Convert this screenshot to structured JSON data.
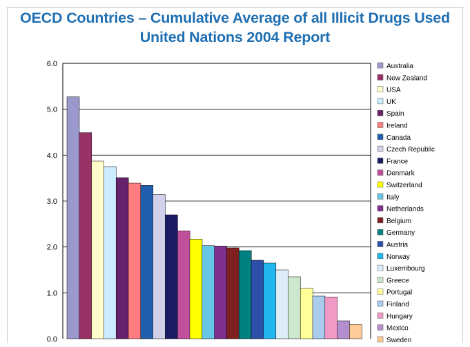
{
  "chart_data": {
    "type": "bar",
    "title": "OECD Countries – Cumulative Average of all Illicit Drugs Used",
    "subtitle": "United Nations 2004 Report",
    "xlabel": "",
    "ylabel": "",
    "ylim": [
      0,
      6
    ],
    "yticks": [
      "0.0",
      "1.0",
      "2.0",
      "3.0",
      "4.0",
      "5.0",
      "6.0"
    ],
    "grid": true,
    "legend_position": "right",
    "categories": [
      "Australia",
      "New Zealand",
      "USA",
      "UK",
      "Spain",
      "Ireland",
      "Canada",
      "Czech Republic",
      "France",
      "Denmark",
      "Switzerland",
      "Italy",
      "Netherlands",
      "Belgium",
      "Germany",
      "Austria",
      "Norway",
      "Luxembourg",
      "Greece",
      "Portugal",
      "Finland",
      "Hungary",
      "Mexico",
      "Sweden"
    ],
    "values": [
      5.27,
      4.49,
      3.87,
      3.75,
      3.51,
      3.39,
      3.34,
      3.14,
      2.7,
      2.35,
      2.17,
      2.03,
      2.02,
      1.98,
      1.92,
      1.71,
      1.65,
      1.5,
      1.35,
      1.1,
      0.93,
      0.91,
      0.39,
      0.31
    ],
    "colors": [
      "#9b99cc",
      "#993366",
      "#ffffcc",
      "#ccecff",
      "#66226a",
      "#ff7c80",
      "#1f5fae",
      "#d0d0ea",
      "#1c1c66",
      "#c04f9c",
      "#ffff00",
      "#66c6e6",
      "#7f2f8f",
      "#7f1f1f",
      "#008080",
      "#2d4fa8",
      "#22b8ef",
      "#ddeef8",
      "#cce8cc",
      "#ffff99",
      "#a8cbee",
      "#f29ac6",
      "#b48fcf",
      "#ffcc99"
    ]
  }
}
